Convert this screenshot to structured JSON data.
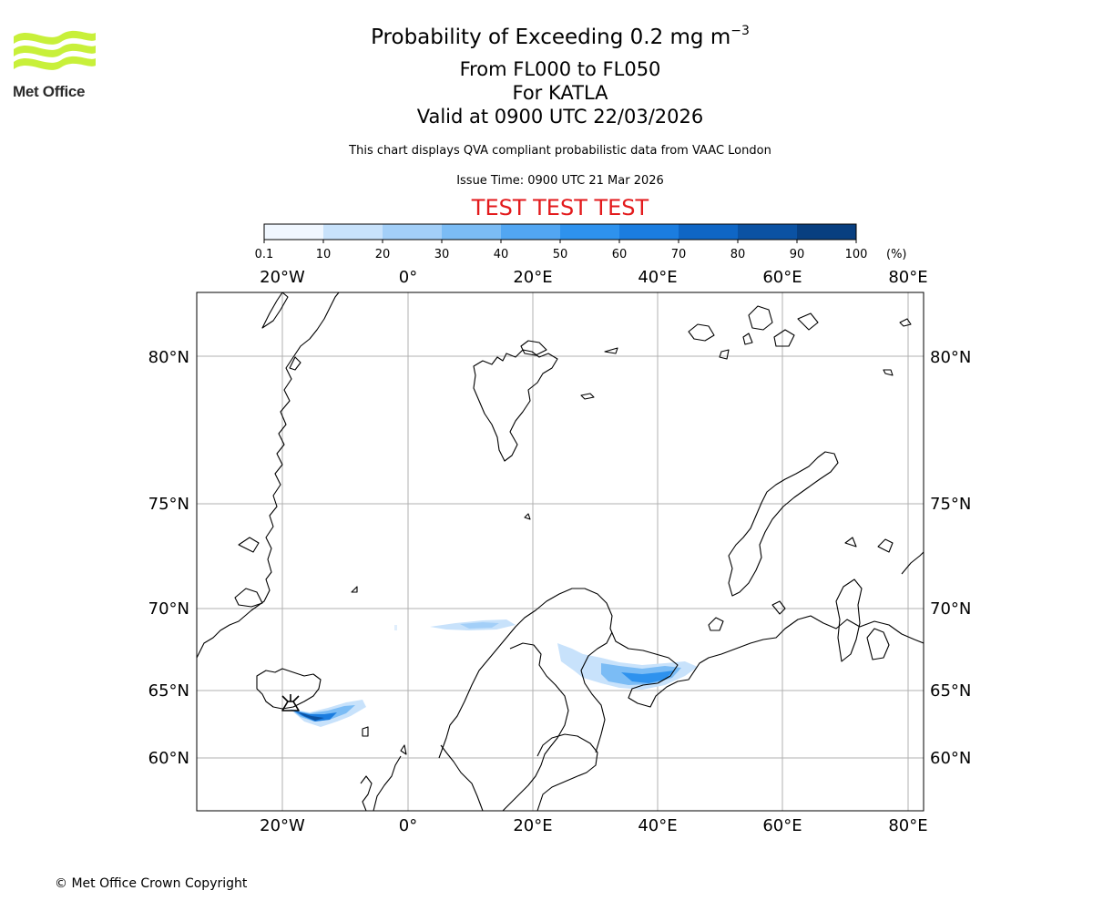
{
  "header": {
    "logo": "Met Office",
    "title_prefix": "Probability of Exceeding 0.2 mg m",
    "title_exponent": "−3",
    "flight_levels": "From FL000 to FL050",
    "volcano": "For KATLA",
    "valid_time": "Valid at 0900 UTC 22/03/2026",
    "subtitle": "This chart displays QVA compliant probabilistic data from VAAC London",
    "issue_time": "Issue Time: 0900 UTC 21 Mar 2026",
    "test_banner": "TEST TEST TEST"
  },
  "colorbar": {
    "tick_labels": [
      "0.1",
      "10",
      "20",
      "30",
      "40",
      "50",
      "60",
      "70",
      "80",
      "90",
      "100"
    ],
    "unit": "(%)",
    "colors": [
      "#f0f7ff",
      "#c8e2fb",
      "#a3cff8",
      "#7bbcf5",
      "#52a6f2",
      "#2e92ee",
      "#1b7de0",
      "#0f66c5",
      "#0b52a3",
      "#083f80",
      "#062a55"
    ]
  },
  "map": {
    "lon_labels": [
      "20°W",
      "0°",
      "20°E",
      "40°E",
      "60°E",
      "80°E"
    ],
    "lat_labels": [
      "80°N",
      "75°N",
      "70°N",
      "65°N",
      "60°N"
    ],
    "volcano_symbol": "volcano-icon",
    "gridline_color": "#b0b0b0",
    "coast_color": "#000000"
  },
  "footer": {
    "copyright": "© Met Office Crown Copyright"
  }
}
